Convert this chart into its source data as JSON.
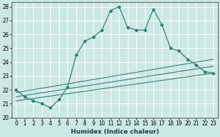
{
  "xlabel": "Humidex (Indice chaleur)",
  "bg_color": "#cce8e5",
  "grid_color": "#ffffff",
  "line_color": "#2e7d6e",
  "xlim": [
    -0.5,
    23.5
  ],
  "ylim": [
    20,
    28.3
  ],
  "xticks": [
    0,
    1,
    2,
    3,
    4,
    5,
    6,
    7,
    8,
    9,
    10,
    11,
    12,
    13,
    14,
    15,
    16,
    17,
    18,
    19,
    20,
    21,
    22,
    23
  ],
  "yticks": [
    20,
    21,
    22,
    23,
    24,
    25,
    26,
    27,
    28
  ],
  "line1_x": [
    0,
    1,
    2,
    3,
    4,
    5,
    6,
    7,
    8,
    9,
    10,
    11,
    12,
    13,
    14,
    15,
    16,
    17,
    18,
    19,
    20,
    21,
    22,
    23
  ],
  "line1_y": [
    22.0,
    21.5,
    21.2,
    21.0,
    20.7,
    21.3,
    22.2,
    24.5,
    25.5,
    25.8,
    26.3,
    27.7,
    28.0,
    26.5,
    26.3,
    26.3,
    27.8,
    26.7,
    25.0,
    24.8,
    24.2,
    23.8,
    23.3,
    23.2
  ],
  "line2_x": [
    0,
    23
  ],
  "line2_y": [
    21.8,
    24.2
  ],
  "line3_x": [
    0,
    23
  ],
  "line3_y": [
    21.5,
    23.7
  ],
  "line4_x": [
    0,
    23
  ],
  "line4_y": [
    21.2,
    23.2
  ]
}
